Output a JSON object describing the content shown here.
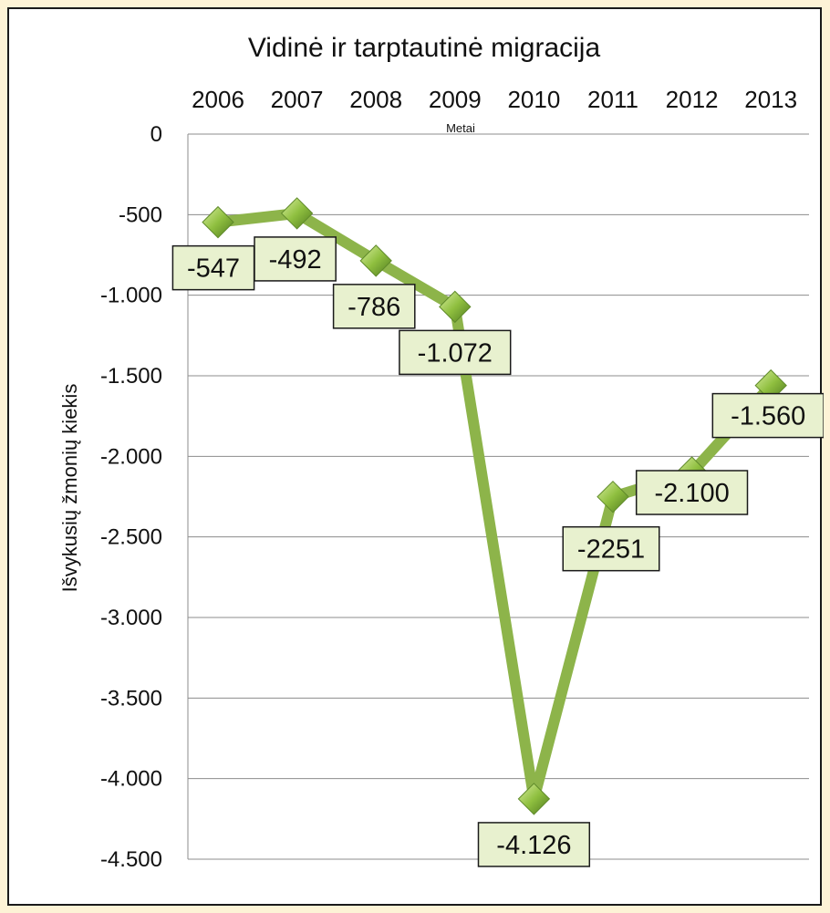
{
  "chart_data": {
    "type": "line",
    "title": "Vidinė ir tarptautinė migracija",
    "xlabel": "Metai",
    "ylabel": "Išvykusių žmonių kiekis",
    "categories": [
      "2006",
      "2007",
      "2008",
      "2009",
      "2010",
      "2011",
      "2012",
      "2013"
    ],
    "series": [
      {
        "values": [
          -547,
          -492,
          -786,
          -1072,
          -4126,
          -2251,
          -2100,
          -1560
        ],
        "data_labels": [
          "-547",
          "-492",
          "-786",
          "-1.072",
          "-4.126",
          "-2251",
          "-2.100",
          "-1.560"
        ],
        "color": "#8db44a",
        "marker": "diamond"
      }
    ],
    "ylim": [
      -4500,
      0
    ],
    "yticks": [
      0,
      -500,
      -1000,
      -1500,
      -2000,
      -2500,
      -3000,
      -3500,
      -4000,
      -4500
    ],
    "ytick_labels": [
      "0",
      "-500",
      "-1.000",
      "-1.500",
      "-2.000",
      "-2.500",
      "-3.000",
      "-3.500",
      "-4.000",
      "-4.500"
    ],
    "x_axis_position": "top",
    "grid": true,
    "legend": "none",
    "colors": {
      "page_background": "#fdf3d6",
      "line": "#8db44a",
      "label_background": "#e8f1cf",
      "gridline": "#8c8c8c"
    }
  }
}
